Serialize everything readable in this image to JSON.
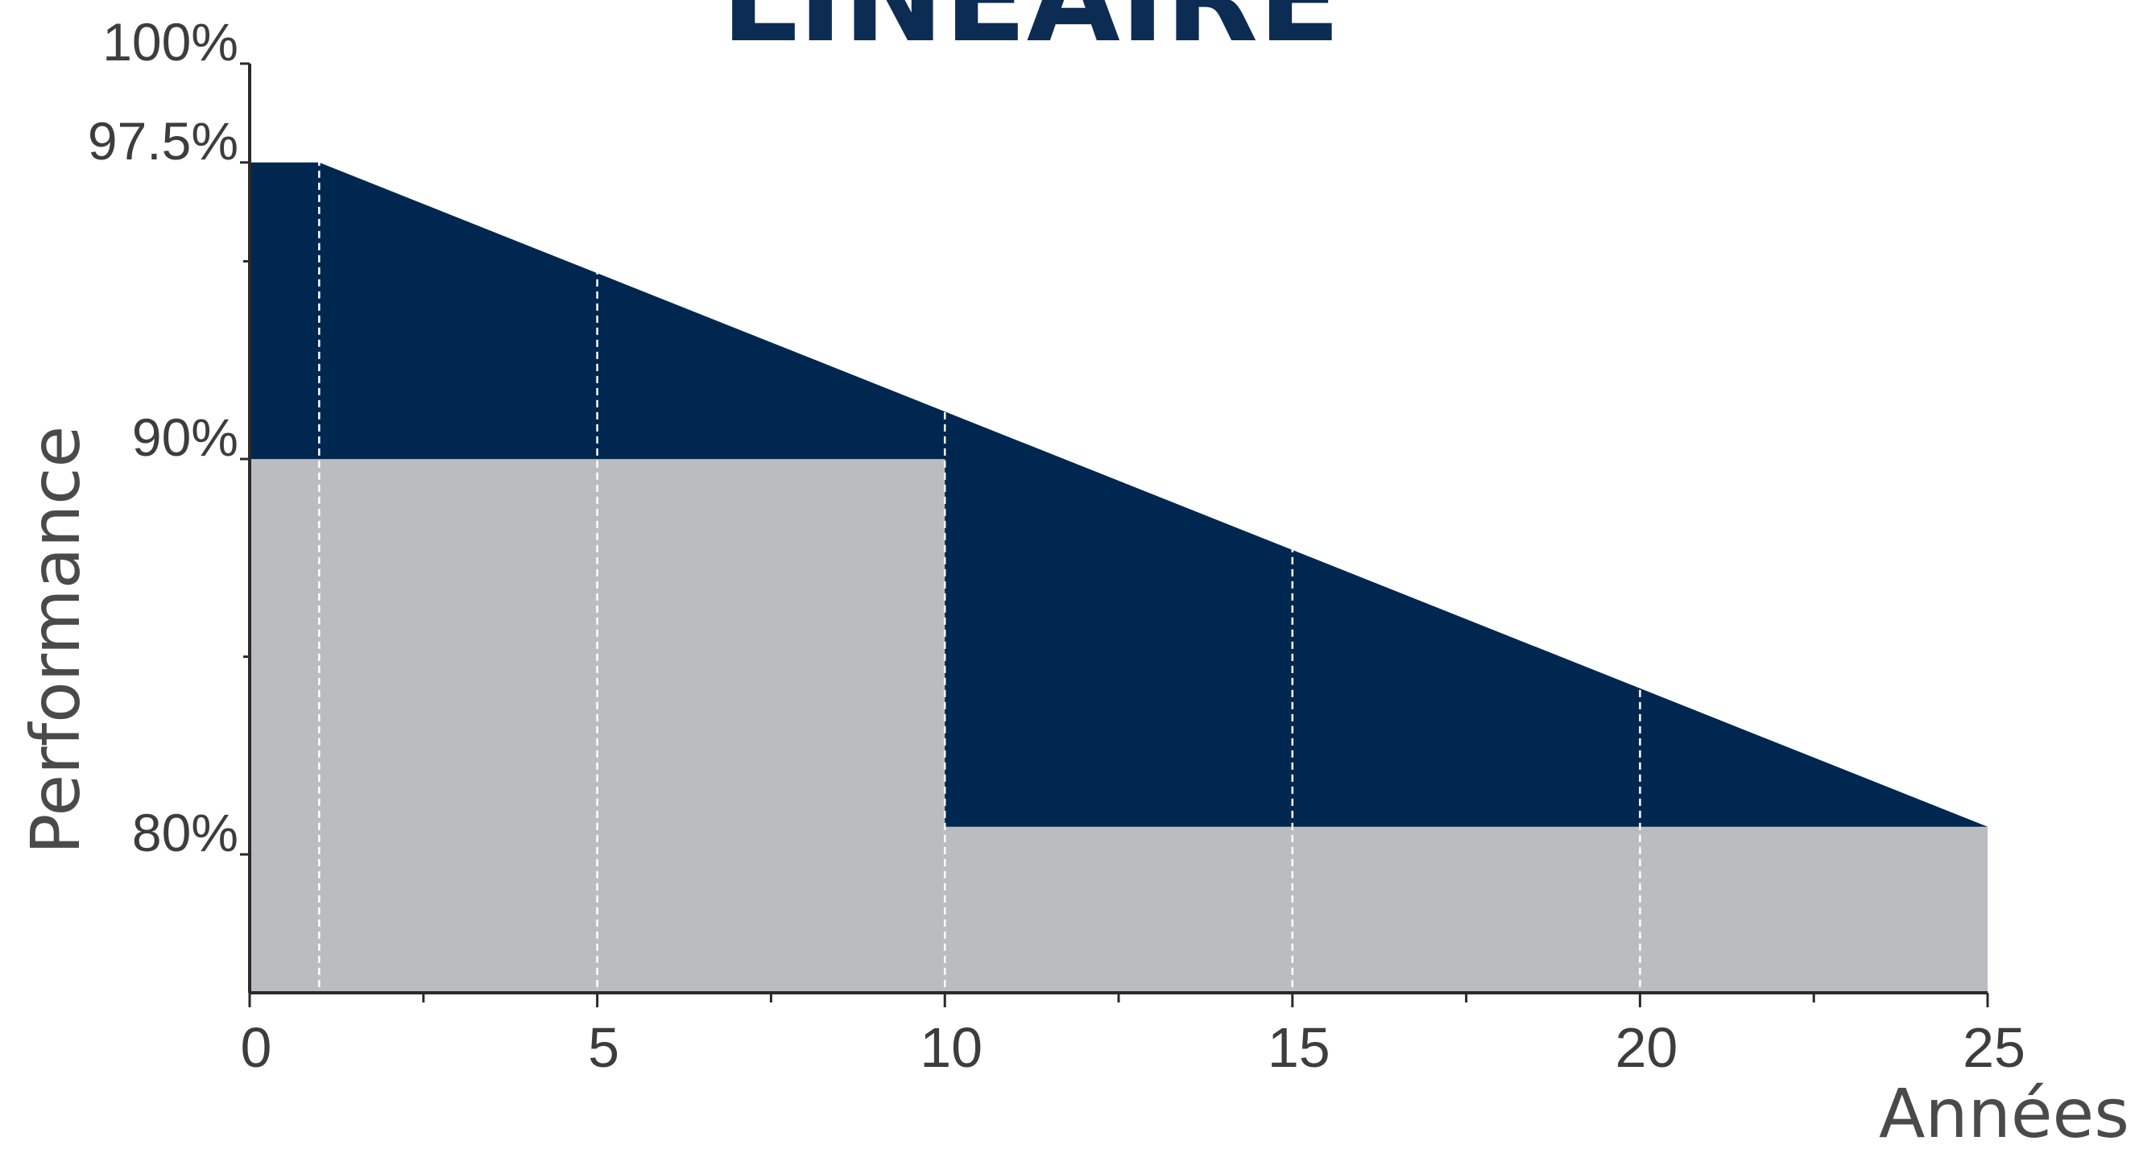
{
  "chart_data": {
    "type": "area",
    "title": "LINÉAIRE",
    "xlabel": "Années",
    "ylabel": "Performance",
    "xlim": [
      0,
      25
    ],
    "ylim": [
      76.5,
      100
    ],
    "x_ticks": [
      {
        "value": 0,
        "label": "0"
      },
      {
        "value": 5,
        "label": "5"
      },
      {
        "value": 10,
        "label": "10"
      },
      {
        "value": 15,
        "label": "15"
      },
      {
        "value": 20,
        "label": "20"
      },
      {
        "value": 25,
        "label": "25"
      }
    ],
    "x_minor_ticks": [
      2.5,
      7.5,
      12.5,
      17.5,
      22.5
    ],
    "y_ticks": [
      {
        "value": 100,
        "label": "100%"
      },
      {
        "value": 97.5,
        "label": "97.5%"
      },
      {
        "value": 90,
        "label": "90%"
      },
      {
        "value": 80,
        "label": "80%"
      }
    ],
    "y_minor_ticks": [
      95,
      85
    ],
    "gridlines_x": [
      1,
      5,
      10,
      15,
      20
    ],
    "series": [
      {
        "color": "#00274f",
        "points": [
          {
            "x": 0,
            "y": 97.5
          },
          {
            "x": 1,
            "y": 97.5
          },
          {
            "x": 25,
            "y": 80.7
          }
        ]
      },
      {
        "color": "#bbbcc0",
        "points": [
          {
            "x": 0,
            "y": 90
          },
          {
            "x": 10,
            "y": 90
          },
          {
            "x": 10,
            "y": 80.7
          },
          {
            "x": 25,
            "y": 80.7
          }
        ]
      }
    ],
    "colors": {
      "axis": "#2a2a2a",
      "tick_label": "#3d3d3d",
      "title": "#0d2c54",
      "gridline": "#ffffff"
    }
  }
}
